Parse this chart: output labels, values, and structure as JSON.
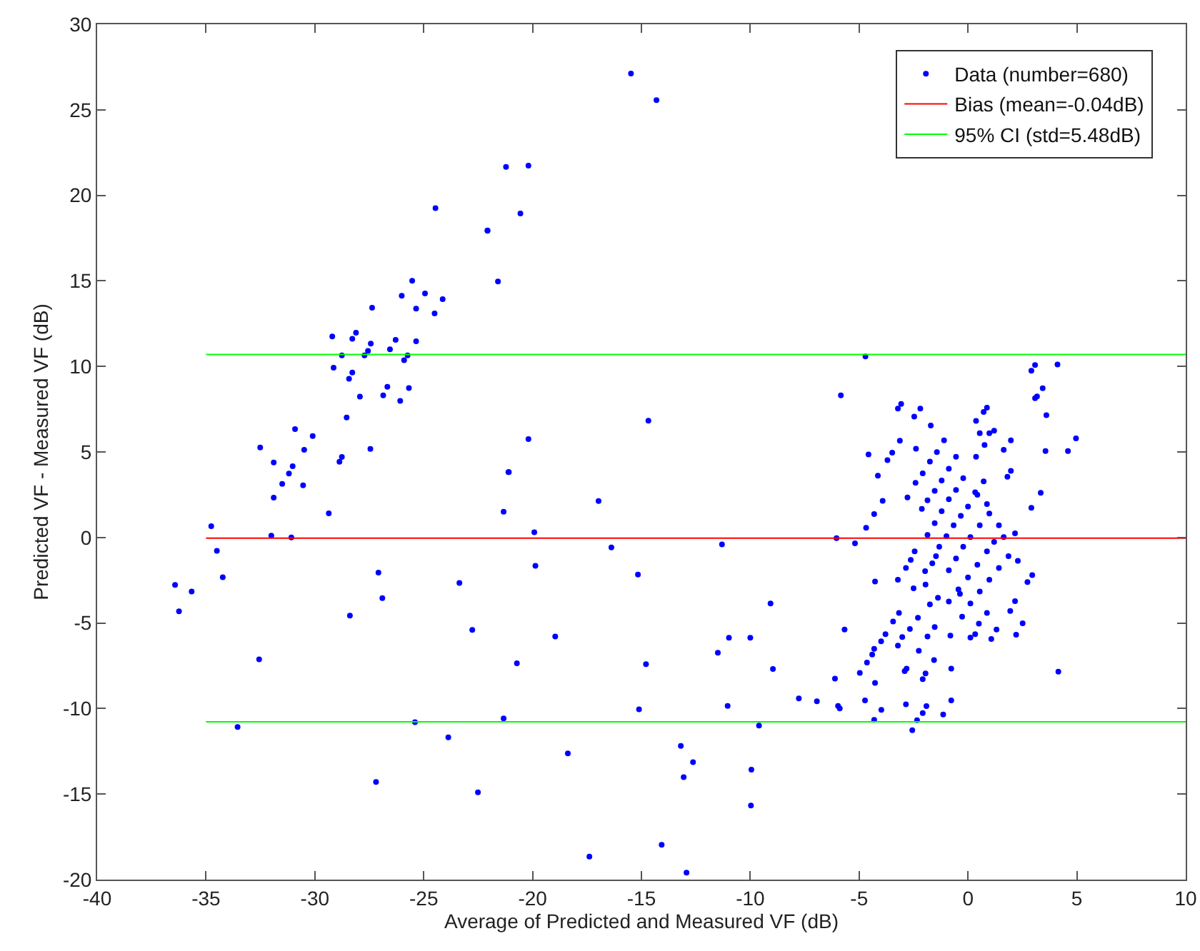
{
  "chart_data": {
    "type": "scatter",
    "xlabel": "Average of Predicted and Measured VF (dB)",
    "ylabel": "Predicted VF - Measured VF (dB)",
    "xlim": [
      -40,
      10
    ],
    "xticks": [
      -40,
      -35,
      -30,
      -25,
      -20,
      -15,
      -10,
      -5,
      0,
      5,
      10
    ],
    "ylim": [
      -20,
      30
    ],
    "yticks": [
      -20,
      -15,
      -10,
      -5,
      0,
      5,
      10,
      15,
      20,
      25,
      30
    ],
    "grid": false,
    "legend": "top right",
    "series": [
      {
        "name": "Data (number=680)",
        "marker": "circle",
        "color": "#0000ff",
        "x": [
          -21.22,
          -24.46,
          -22.07,
          -21.59,
          -25.53,
          -26.01,
          -24.94,
          -24.13,
          -25.35,
          -27.37,
          -24.5,
          -29.2,
          -28.11,
          -28.28,
          -27.43,
          -26.29,
          -25.35,
          -28.76,
          -27.72,
          -27.56,
          -26.55,
          -25.74,
          -25.9,
          -29.14,
          -28.28,
          -28.43,
          -27.93,
          -26.86,
          -26.67,
          -26.08,
          -25.68,
          -28.54,
          -30.1,
          -30.91,
          -30.49,
          -32.51,
          -31.89,
          -31.02,
          -31.19,
          -31.5,
          -30.54,
          -28.76,
          -28.87,
          -27.45,
          -31.89,
          -29.36,
          -34.76,
          -32.0,
          -31.08,
          -34.5,
          -34.23,
          -36.42,
          -35.66,
          -27.08,
          -26.9,
          -23.36,
          -21.11,
          -21.33,
          -36.24,
          -32.56,
          -33.55,
          -28.39,
          -27.19,
          -25.4,
          -23.87,
          -22.77,
          -22.51,
          -21.33,
          -15.48,
          -14.31,
          -20.19,
          -20.56,
          -22.07,
          -14.68,
          -20.19,
          -21.09,
          -16.97,
          -19.92,
          -16.38,
          -19.87,
          -15.16,
          -11.3,
          -18.96,
          -20.72,
          -14.79,
          -11.49,
          -10.98,
          -10.0,
          -9.07,
          -8.96,
          -15.11,
          -11.04,
          -7.77,
          -6.94,
          -9.6,
          -18.38,
          -13.19,
          -12.63,
          -13.06,
          -9.95,
          -9.97,
          -14.07,
          -17.39,
          -12.93,
          -4.71,
          -5.84,
          -3.22,
          -3.07,
          -2.47,
          -2.19,
          -1.71,
          -3.13,
          -2.39,
          -4.57,
          -3.48,
          -3.7,
          -4.14,
          -2.78,
          -3.92,
          -4.31,
          -4.68,
          -6.04,
          -5.19,
          -5.67,
          -4.27,
          -6.11,
          -5.97,
          -5.89,
          -4.73,
          -4.31,
          -3.98,
          -2.56,
          -2.34,
          -2.08,
          -1.91,
          -2.85,
          -1.14,
          -0.77,
          -4.97,
          -4.64,
          -4.27,
          -4.4,
          -4.31,
          -3.99,
          -3.79,
          -3.44,
          -3.17,
          -2.91,
          -2.82,
          -2.08,
          -1.95,
          -1.56,
          -0.77,
          -3.22,
          -3.02,
          -2.67,
          -2.3,
          -2.26,
          -1.86,
          -1.53,
          -0.81,
          0.11,
          0.33,
          0.5,
          1.07,
          1.31,
          2.21,
          2.51,
          1.94,
          2.16,
          2.73,
          2.95,
          -0.27,
          0.87,
          -1.75,
          -1.38,
          -0.88,
          -0.37,
          -2.5,
          -1.95,
          -3.22,
          -2.85,
          -2.63,
          -2.45,
          -1.97,
          -1.64,
          -1.47,
          -2.41,
          -2.08,
          -1.75,
          -1.43,
          -1.1,
          -2.12,
          -1.86,
          -1.53,
          -1.21,
          -0.88,
          -0.55,
          -1.86,
          -1.53,
          -1.21,
          -0.88,
          -0.55,
          -0.22,
          0.72,
          -1.32,
          -0.99,
          -0.66,
          -0.33,
          0.0,
          0.43,
          0.87,
          -0.88,
          -0.55,
          -0.22,
          0.11,
          0.54,
          0.98,
          1.42,
          -0.44,
          0.0,
          0.43,
          0.87,
          1.2,
          1.64,
          0.11,
          0.54,
          0.98,
          1.42,
          1.86,
          2.29,
          0.37,
          0.72,
          0.87,
          0.54,
          0.98,
          1.2,
          0.37,
          0.76,
          1.64,
          1.97,
          1.81,
          1.97,
          0.33,
          2.16,
          2.91,
          3.34,
          2.91,
          3.08,
          3.08,
          3.17,
          3.43,
          3.6,
          4.11,
          3.56,
          4.59,
          4.96,
          4.15
        ],
        "values": [
          21.66,
          19.25,
          17.95,
          14.96,
          15.01,
          14.13,
          14.27,
          13.93,
          13.38,
          13.43,
          13.1,
          11.75,
          11.97,
          11.61,
          11.33,
          11.55,
          11.47,
          10.64,
          10.64,
          10.91,
          11.0,
          10.64,
          10.36,
          9.92,
          9.64,
          9.28,
          8.23,
          8.31,
          8.81,
          7.98,
          8.73,
          7.01,
          5.93,
          6.34,
          5.12,
          5.26,
          4.38,
          4.16,
          3.74,
          3.13,
          3.05,
          4.71,
          4.43,
          5.18,
          2.33,
          1.41,
          0.66,
          0.11,
          0.0,
          -0.78,
          -2.33,
          -2.77,
          -3.16,
          -2.05,
          -3.55,
          -2.66,
          3.82,
          1.5,
          -4.32,
          -7.12,
          -11.08,
          -4.57,
          -14.29,
          -10.8,
          -11.68,
          -5.4,
          -14.9,
          -10.58,
          27.12,
          25.57,
          21.74,
          18.94,
          17.93,
          6.83,
          5.75,
          3.82,
          2.13,
          0.3,
          -0.58,
          -1.66,
          -2.17,
          -0.41,
          -5.79,
          -7.35,
          -7.41,
          -6.74,
          -5.86,
          -5.86,
          -3.86,
          -7.69,
          -10.05,
          -9.85,
          -9.41,
          -9.58,
          -11.0,
          -12.62,
          -12.18,
          -13.13,
          -14.01,
          -13.57,
          -15.67,
          -17.97,
          -18.65,
          -19.59,
          10.58,
          8.31,
          7.54,
          7.81,
          7.07,
          7.54,
          6.54,
          5.66,
          5.19,
          4.85,
          4.96,
          4.52,
          3.61,
          2.34,
          2.14,
          1.37,
          0.57,
          -0.04,
          -0.34,
          -5.38,
          -2.58,
          -8.25,
          -9.85,
          -9.99,
          -9.52,
          -10.66,
          -10.08,
          -11.27,
          -10.68,
          -10.27,
          -9.86,
          -9.75,
          -10.35,
          -9.52,
          -7.92,
          -7.31,
          -8.5,
          -6.84,
          -6.51,
          -6.07,
          -5.65,
          -4.91,
          -4.41,
          -7.81,
          -7.67,
          -8.28,
          -7.95,
          -7.17,
          -7.67,
          -6.32,
          -5.82,
          -5.35,
          -4.69,
          -6.62,
          -5.79,
          -5.24,
          -5.74,
          -5.85,
          -5.65,
          -5.04,
          -5.93,
          -5.38,
          -5.68,
          -5.02,
          -4.3,
          -3.72,
          -2.61,
          -2.2,
          -4.63,
          -4.41,
          -3.91,
          -3.52,
          -3.74,
          -3.3,
          -2.97,
          -2.75,
          -2.47,
          -1.78,
          -1.31,
          -0.81,
          -1.97,
          -1.51,
          -1.09,
          3.19,
          3.75,
          4.44,
          4.99,
          5.68,
          1.67,
          2.17,
          2.72,
          3.33,
          4.02,
          4.72,
          0.15,
          0.84,
          1.54,
          2.23,
          2.78,
          3.47,
          3.28,
          -0.54,
          0.07,
          0.71,
          1.26,
          1.81,
          2.5,
          1.95,
          -1.92,
          -1.23,
          -0.54,
          0.02,
          0.71,
          1.4,
          0.71,
          -3.03,
          -2.34,
          -1.59,
          -0.81,
          -0.26,
          0.02,
          -3.86,
          -3.16,
          -2.47,
          -1.78,
          -1.09,
          -1.37,
          6.82,
          7.34,
          7.59,
          6.1,
          6.1,
          6.24,
          4.72,
          5.41,
          5.13,
          5.68,
          3.55,
          3.89,
          2.64,
          0.24,
          1.73,
          2.61,
          9.75,
          10.08,
          8.14,
          8.25,
          8.72,
          7.15,
          10.11,
          5.05,
          5.05,
          5.79,
          -7.84
        ]
      },
      {
        "name": "Bias (mean=-0.04dB)",
        "type": "line",
        "marker": "none",
        "color": "#ff0000",
        "x": [
          -35,
          10
        ],
        "values": [
          -0.04,
          -0.04
        ]
      },
      {
        "name": "95% CI (std=5.48dB)",
        "type": "line",
        "marker": "none",
        "color": "#00ff00",
        "x": [
          -35,
          10
        ],
        "values": [
          10.7,
          10.7
        ]
      },
      {
        "type": "line",
        "marker": "none",
        "color": "#00ff00",
        "x": [
          -35,
          10
        ],
        "values": [
          -10.78,
          -10.78
        ]
      }
    ]
  }
}
